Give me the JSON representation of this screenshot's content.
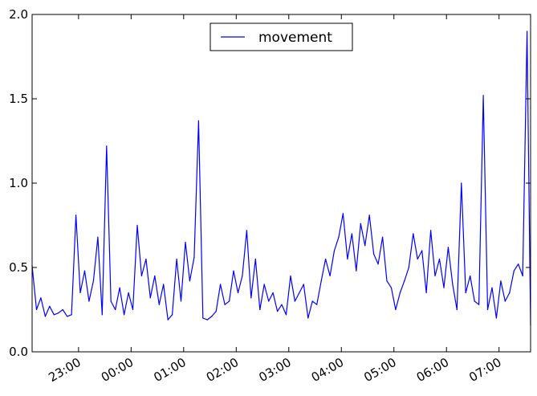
{
  "chart_data": {
    "type": "line",
    "title": "",
    "xlabel": "",
    "ylabel": "",
    "xlim": [
      "22:07",
      "07:36"
    ],
    "ylim": [
      0.0,
      2.0
    ],
    "y_ticks": [
      "0.0",
      "0.5",
      "1.0",
      "1.5",
      "2.0"
    ],
    "x_ticks": [
      "23:00",
      "00:00",
      "01:00",
      "02:00",
      "03:00",
      "04:00",
      "05:00",
      "06:00",
      "07:00"
    ],
    "grid": false,
    "legend_position": "top-center",
    "series": [
      {
        "name": "movement",
        "color": "#0000ff",
        "x": [
          "22:07",
          "22:12",
          "22:17",
          "22:22",
          "22:27",
          "22:32",
          "22:37",
          "22:42",
          "22:47",
          "22:52",
          "22:57",
          "23:02",
          "23:07",
          "23:12",
          "23:17",
          "23:22",
          "23:27",
          "23:32",
          "23:37",
          "23:42",
          "23:47",
          "23:52",
          "23:57",
          "00:02",
          "00:07",
          "00:12",
          "00:17",
          "00:22",
          "00:27",
          "00:32",
          "00:37",
          "00:42",
          "00:47",
          "00:52",
          "00:57",
          "01:02",
          "01:07",
          "01:12",
          "01:17",
          "01:22",
          "01:27",
          "01:32",
          "01:37",
          "01:42",
          "01:47",
          "01:52",
          "01:57",
          "02:02",
          "02:07",
          "02:12",
          "02:17",
          "02:22",
          "02:27",
          "02:32",
          "02:37",
          "02:42",
          "02:47",
          "02:52",
          "02:57",
          "03:02",
          "03:07",
          "03:12",
          "03:17",
          "03:22",
          "03:27",
          "03:32",
          "03:37",
          "03:42",
          "03:47",
          "03:52",
          "03:57",
          "04:02",
          "04:07",
          "04:12",
          "04:17",
          "04:22",
          "04:27",
          "04:32",
          "04:37",
          "04:42",
          "04:47",
          "04:52",
          "04:57",
          "05:02",
          "05:07",
          "05:12",
          "05:17",
          "05:22",
          "05:27",
          "05:32",
          "05:37",
          "05:42",
          "05:47",
          "05:52",
          "05:57",
          "06:02",
          "06:07",
          "06:12",
          "06:17",
          "06:22",
          "06:27",
          "06:32",
          "06:37",
          "06:42",
          "06:47",
          "06:52",
          "06:57",
          "07:02",
          "07:07",
          "07:12",
          "07:17",
          "07:22",
          "07:27",
          "07:32",
          "07:36"
        ],
        "values": [
          0.51,
          0.25,
          0.32,
          0.21,
          0.27,
          0.22,
          0.23,
          0.25,
          0.21,
          0.22,
          0.81,
          0.35,
          0.48,
          0.3,
          0.42,
          0.68,
          0.22,
          1.22,
          0.3,
          0.25,
          0.38,
          0.22,
          0.35,
          0.25,
          0.75,
          0.45,
          0.55,
          0.32,
          0.45,
          0.28,
          0.4,
          0.19,
          0.22,
          0.55,
          0.3,
          0.65,
          0.42,
          0.56,
          1.37,
          0.2,
          0.19,
          0.21,
          0.24,
          0.4,
          0.28,
          0.3,
          0.48,
          0.35,
          0.45,
          0.72,
          0.32,
          0.55,
          0.25,
          0.4,
          0.3,
          0.35,
          0.24,
          0.28,
          0.22,
          0.45,
          0.3,
          0.35,
          0.4,
          0.2,
          0.3,
          0.28,
          0.42,
          0.55,
          0.45,
          0.6,
          0.68,
          0.82,
          0.55,
          0.7,
          0.48,
          0.76,
          0.63,
          0.81,
          0.58,
          0.52,
          0.68,
          0.42,
          0.38,
          0.25,
          0.35,
          0.42,
          0.5,
          0.7,
          0.55,
          0.6,
          0.35,
          0.72,
          0.45,
          0.55,
          0.38,
          0.62,
          0.4,
          0.25,
          1.0,
          0.35,
          0.45,
          0.3,
          0.28,
          1.52,
          0.25,
          0.38,
          0.2,
          0.42,
          0.3,
          0.35,
          0.48,
          0.52,
          0.45,
          1.9,
          0.16
        ]
      }
    ]
  }
}
